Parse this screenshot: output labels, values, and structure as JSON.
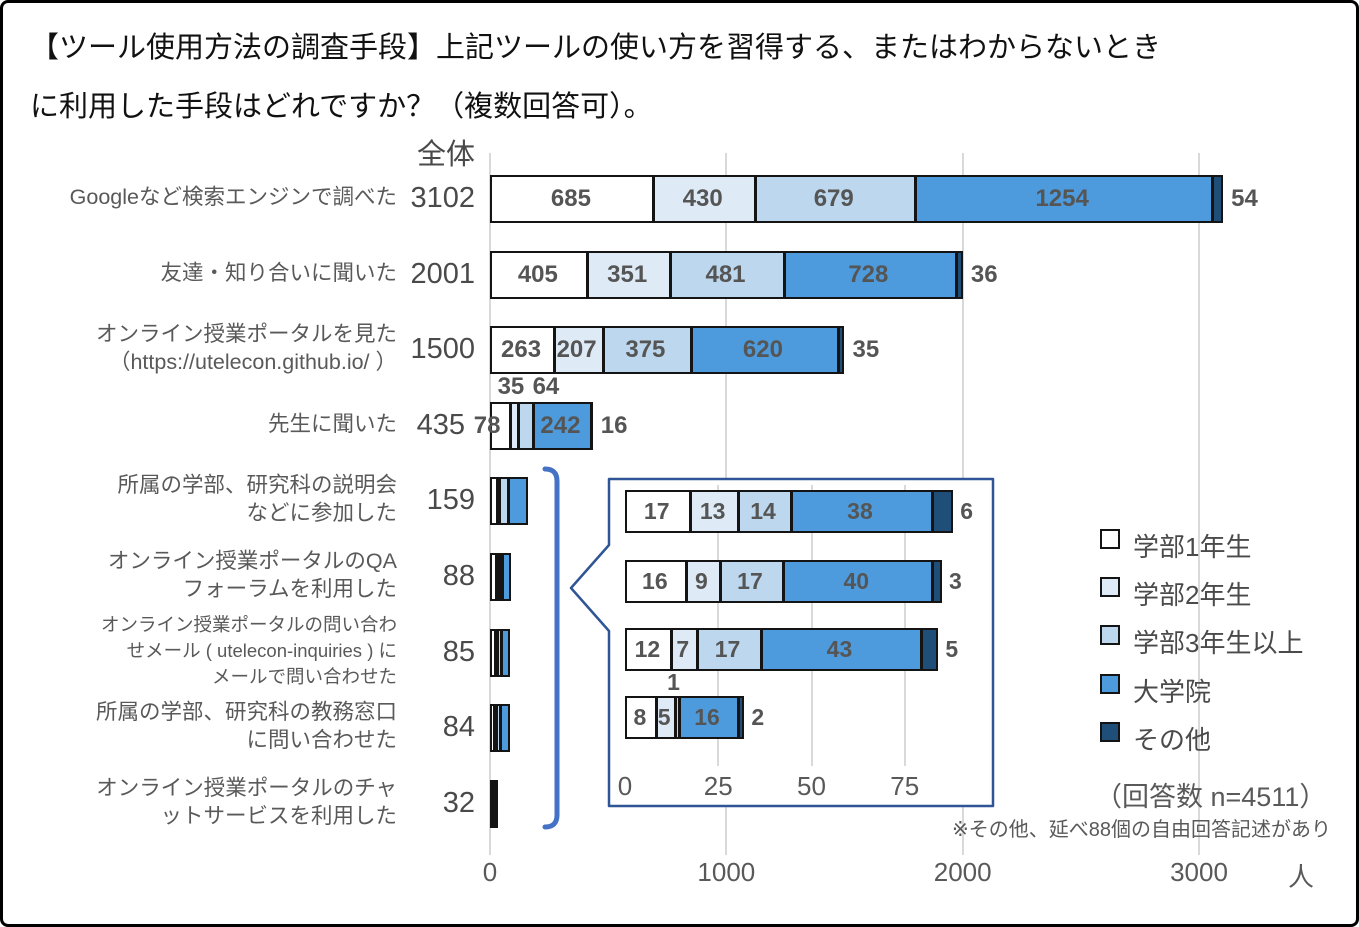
{
  "title": {
    "line1": "【ツール使用方法の調査手段】上記ツールの使い方を習得する、またはわからないとき",
    "line2": "に利用した手段はどれですか？（複数回答可）。"
  },
  "chart_data": {
    "type": "bar",
    "orientation": "horizontal",
    "stacked": true,
    "header_label": "全体",
    "x_axis": {
      "ticks": [
        0,
        1000,
        2000,
        3000
      ],
      "unit_label": "人",
      "max": 3300,
      "grid": true
    },
    "series": [
      "学部1年生",
      "学部2年生",
      "学部3年生以上",
      "大学院",
      "その他"
    ],
    "series_colors": [
      "#FFFFFF",
      "#DEEBF7",
      "#BDD7EE",
      "#4D9BDC",
      "#1F4E79"
    ],
    "rows": [
      {
        "label_lines": [
          "Googleなど検索エンジンで調べた"
        ],
        "total": 3102,
        "values": [
          685,
          430,
          679,
          1254,
          54
        ],
        "labels_visible": true
      },
      {
        "label_lines": [
          "友達・知り合いに聞いた"
        ],
        "total": 2001,
        "values": [
          405,
          351,
          481,
          728,
          36
        ],
        "labels_visible": true
      },
      {
        "label_lines": [
          "オンライン授業ポータルを見た",
          "（https://utelecon.github.io/ ）"
        ],
        "total": 1500,
        "values": [
          263,
          207,
          375,
          620,
          35
        ],
        "labels_visible": true
      },
      {
        "label_lines": [
          "先生に聞いた"
        ],
        "total": 435,
        "values": [
          78,
          35,
          64,
          242,
          16
        ],
        "labels_visible": true,
        "total_shift": true
      },
      {
        "label_lines": [
          "所属の学部、研究科の説明会",
          "などに参加した"
        ],
        "total": 159,
        "values": [
          25,
          8,
          38,
          80,
          8
        ],
        "values_estimated": true,
        "labels_visible": false
      },
      {
        "label_lines": [
          "オンライン授業ポータルのQA",
          "フォーラムを利用した"
        ],
        "total": 88,
        "values": [
          17,
          13,
          14,
          38,
          6
        ],
        "labels_visible": false
      },
      {
        "label_lines": [
          "オンライン授業ポータルの問い合わ",
          "せメール ( utelecon-inquiries ) に",
          "メールで問い合わせた"
        ],
        "total": 85,
        "values": [
          16,
          9,
          17,
          40,
          3
        ],
        "labels_visible": false,
        "small_font": true
      },
      {
        "label_lines": [
          "所属の学部、研究科の教務窓口",
          "に問い合わせた"
        ],
        "total": 84,
        "values": [
          12,
          7,
          17,
          43,
          5
        ],
        "labels_visible": false
      },
      {
        "label_lines": [
          "オンライン授業ポータルのチャ",
          "ットサービスを利用した"
        ],
        "total": 32,
        "values": [
          8,
          5,
          1,
          16,
          2
        ],
        "labels_visible": false
      }
    ],
    "inset": {
      "x_axis": {
        "ticks": [
          0,
          25,
          50,
          75
        ],
        "max": 98,
        "grid": true
      },
      "rows": [
        {
          "total": 88,
          "values": [
            17,
            13,
            14,
            38,
            6
          ]
        },
        {
          "total": 85,
          "values": [
            16,
            9,
            17,
            40,
            3
          ]
        },
        {
          "total": 84,
          "values": [
            12,
            7,
            17,
            43,
            5
          ]
        },
        {
          "total": 32,
          "values": [
            8,
            5,
            1,
            16,
            2
          ]
        }
      ]
    },
    "legend": {
      "position": "right",
      "note": "（回答数 n=4511）"
    },
    "footnote": "※その他、延べ88個の自由回答記述があり"
  },
  "style_colors": {
    "bar_border": "#141414",
    "gridline": "#D9D9D9",
    "bracket": "#4472C4",
    "inset_border": "#2F5597",
    "label_text": "#555555",
    "axis_text": "#595959"
  }
}
